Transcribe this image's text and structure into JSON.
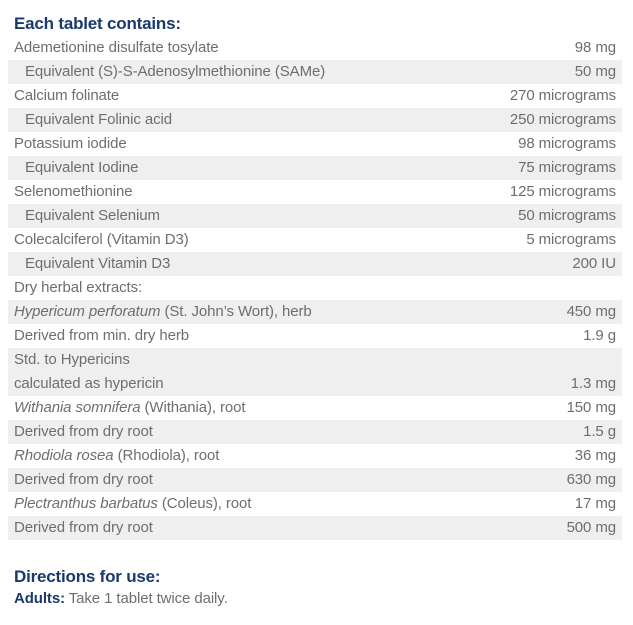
{
  "title": "Each tablet contains:",
  "colors": {
    "heading_navy": "#1a3a6e",
    "body_gray": "#6d6e71",
    "row_band_gray": "#efeff0",
    "background": "#ffffff"
  },
  "table": {
    "rows": [
      {
        "name": "Ademetionine disulfate tosylate",
        "value": "98 mg"
      },
      {
        "name": "Equivalent (S)-S-Adenosylmethionine (SAMe)",
        "value": "50 mg"
      },
      {
        "name": "Calcium folinate",
        "value": "270 micrograms"
      },
      {
        "name": "Equivalent Folinic acid",
        "value": "250 micrograms"
      },
      {
        "name": "Potassium iodide",
        "value": "98 micrograms"
      },
      {
        "name": "Equivalent Iodine",
        "value": "75 micrograms"
      },
      {
        "name": "Selenomethionine",
        "value": "125 micrograms"
      },
      {
        "name": "Equivalent Selenium",
        "value": "50 micrograms"
      },
      {
        "name": "Colecalciferol (Vitamin D3)",
        "value": "5 micrograms"
      },
      {
        "name": "Equivalent Vitamin D3",
        "value": "200 IU"
      },
      {
        "name": "Dry herbal extracts:",
        "value": ""
      },
      {
        "name_italic": "Hypericum perforatum",
        "name_rest": " (St. John’s Wort), herb",
        "value": "450 mg"
      },
      {
        "name": "Derived from min. dry herb",
        "value": "1.9 g"
      },
      {
        "name_line1": "Std. to Hypericins",
        "name_line2": "calculated as hypericin",
        "value": "1.3 mg"
      },
      {
        "name_italic": "Withania somnifera",
        "name_rest": " (Withania), root",
        "value": "150 mg"
      },
      {
        "name": "Derived from dry root",
        "value": "1.5 g"
      },
      {
        "name_italic": "Rhodiola rosea",
        "name_rest": " (Rhodiola), root",
        "value": "36 mg"
      },
      {
        "name": "Derived from dry root",
        "value": "630 mg"
      },
      {
        "name_italic": "Plectranthus barbatus",
        "name_rest": " (Coleus), root",
        "value": "17 mg"
      },
      {
        "name": "Derived from dry root",
        "value": "500 mg"
      }
    ]
  },
  "directions": {
    "heading": "Directions for use:",
    "adults_label": "Adults:",
    "adults_text": " Take 1 tablet twice daily."
  }
}
